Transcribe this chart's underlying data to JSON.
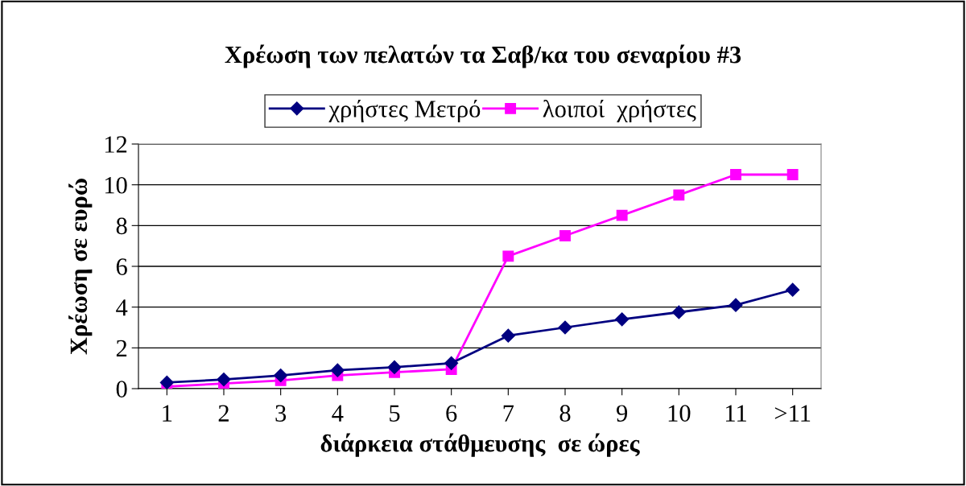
{
  "chart_data": {
    "type": "line",
    "title": "Χρέωση των πελατών τα Σαβ/κα του σεναρίου #3",
    "xlabel": "διάρκεια στάθμευσης  σε ώρες",
    "ylabel": "Χρέωση σε ευρώ",
    "categories": [
      "1",
      "2",
      "3",
      "4",
      "5",
      "6",
      "7",
      "8",
      "9",
      "10",
      "11",
      ">11"
    ],
    "series": [
      {
        "name": "χρήστες Μετρό",
        "color": "#000080",
        "marker": "diamond",
        "values": [
          0.3,
          0.45,
          0.65,
          0.9,
          1.05,
          1.25,
          2.6,
          3.0,
          3.4,
          3.75,
          4.1,
          4.85
        ]
      },
      {
        "name": "λοιποί  χρήστες",
        "color": "#ff00ff",
        "marker": "square",
        "values": [
          0.1,
          0.25,
          0.4,
          0.65,
          0.8,
          0.95,
          6.5,
          7.5,
          8.5,
          9.5,
          10.5,
          10.5
        ]
      }
    ],
    "ylim": [
      0,
      12
    ],
    "yticks": [
      0,
      2,
      4,
      6,
      8,
      10,
      12
    ],
    "grid": "y",
    "legend": "top"
  }
}
